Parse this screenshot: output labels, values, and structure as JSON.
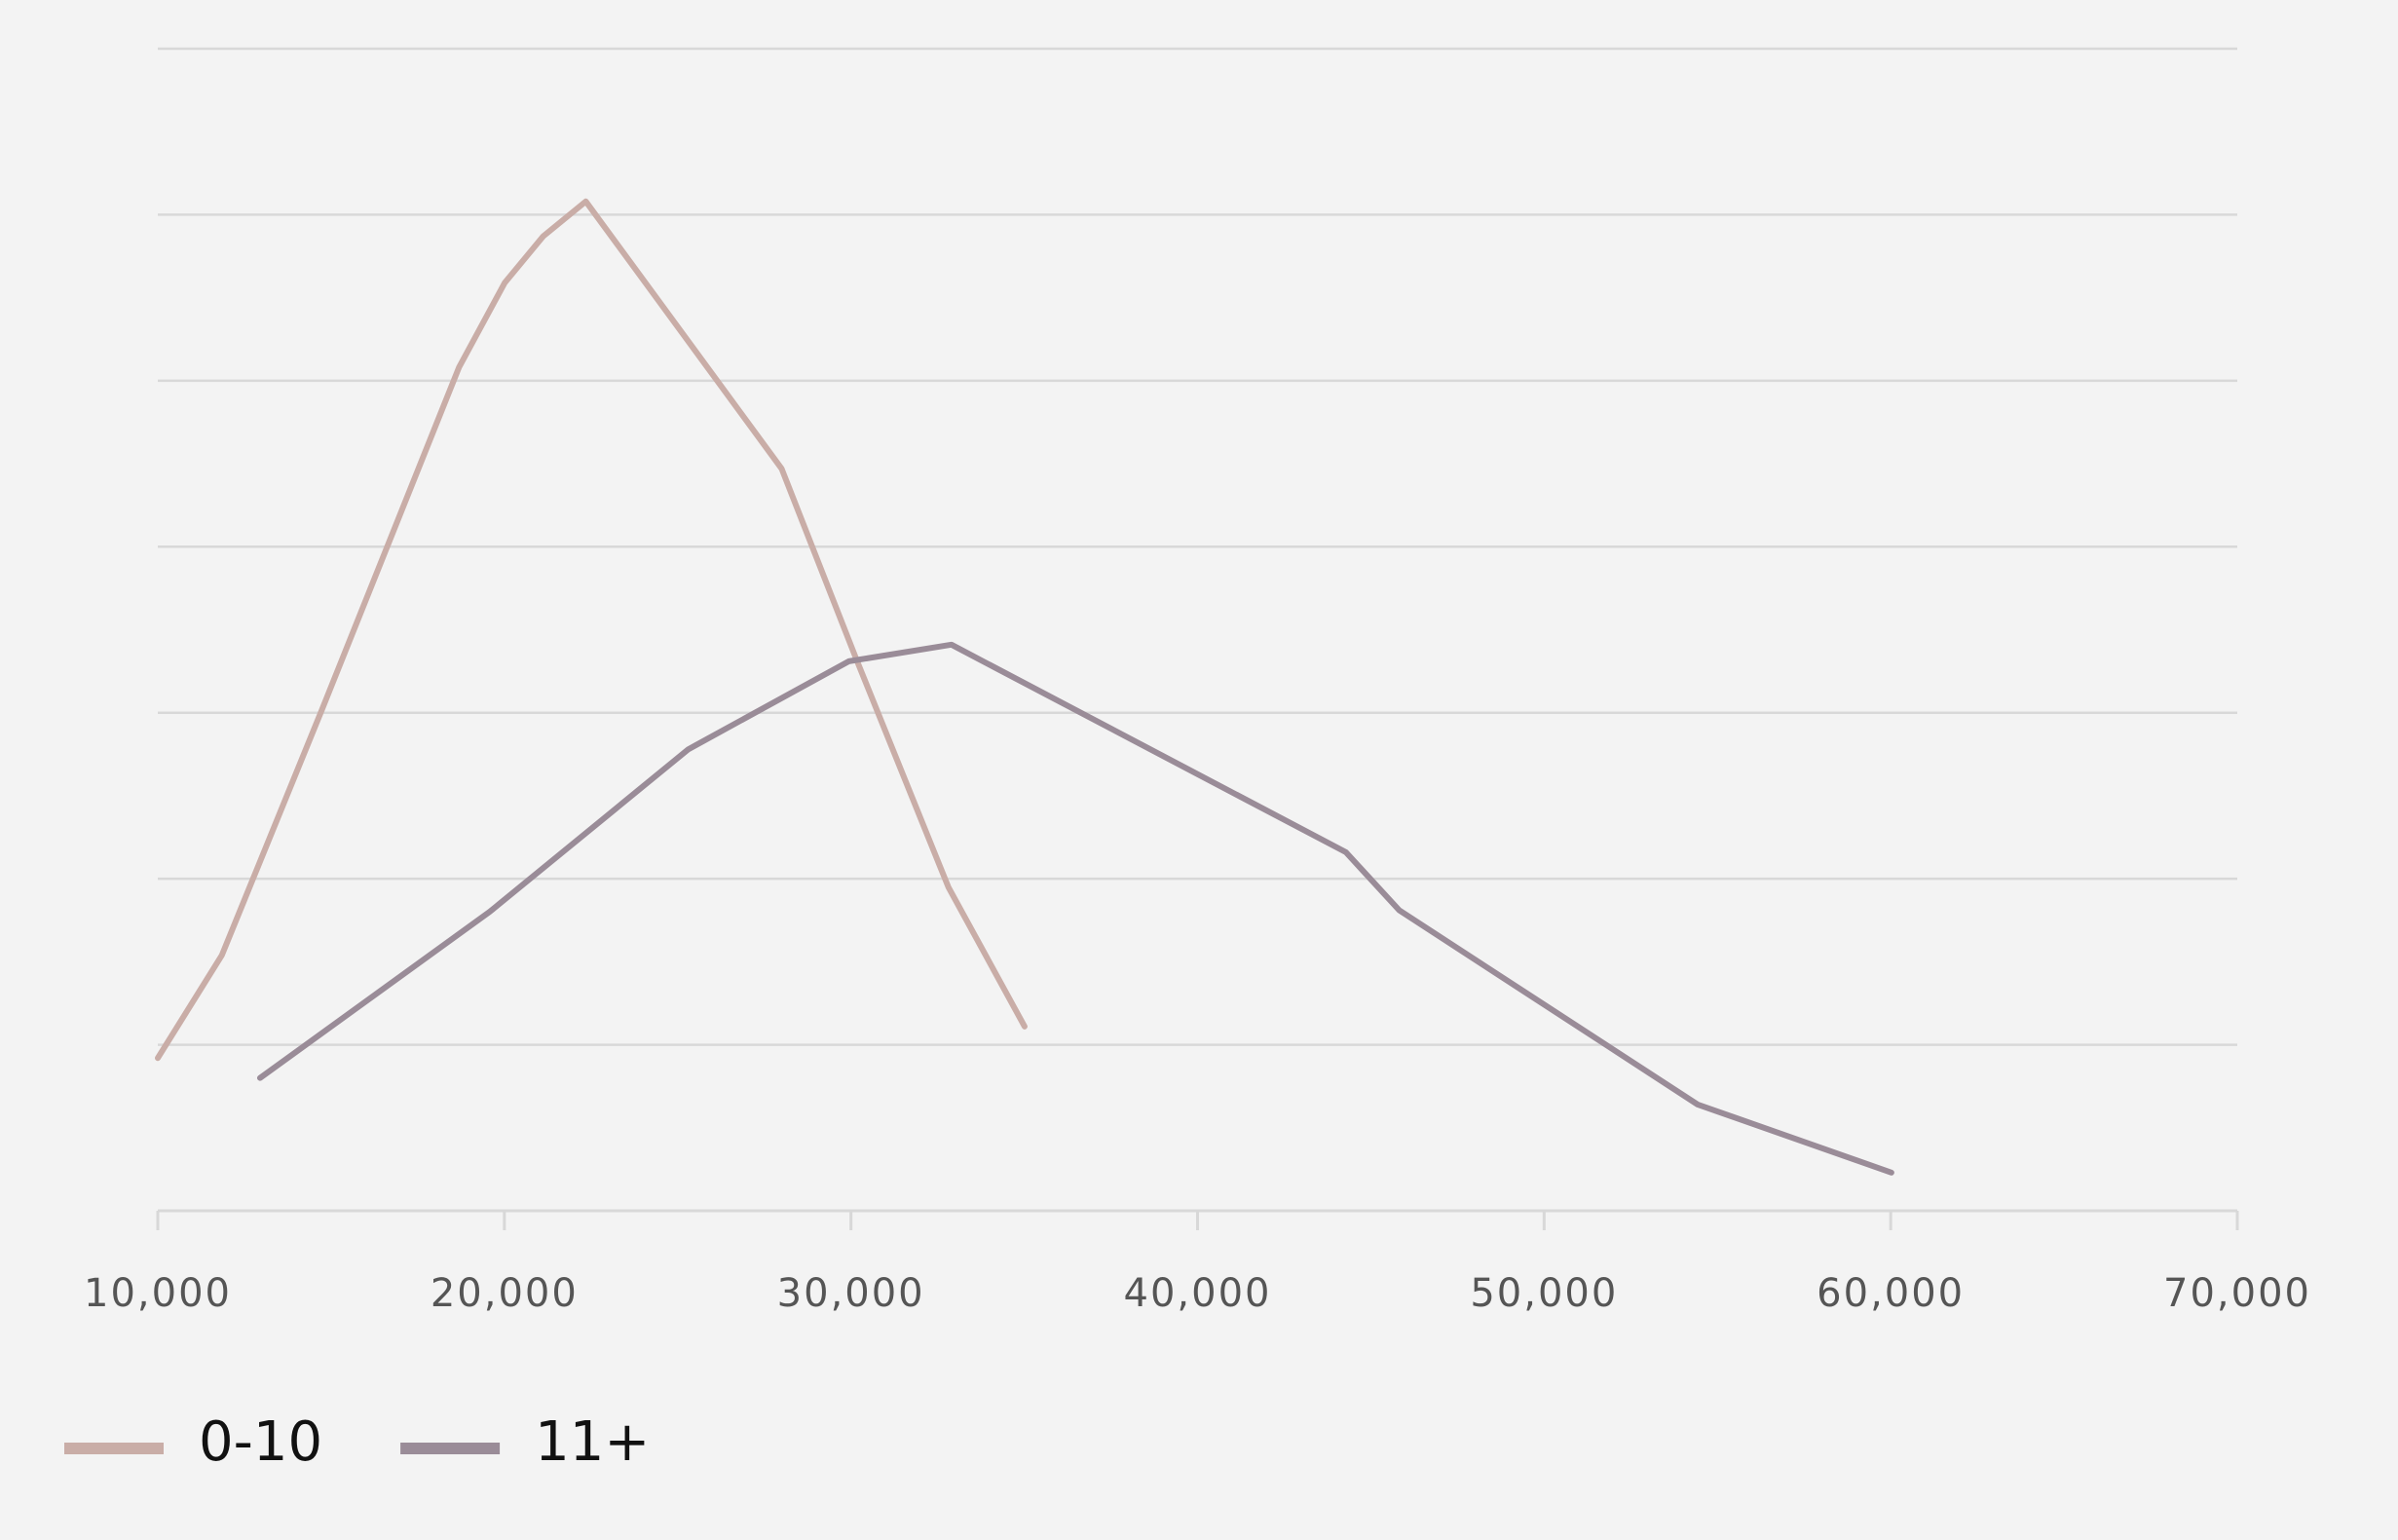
{
  "chart_data": {
    "type": "line",
    "xlim": [
      10000,
      70000
    ],
    "xticks": [
      {
        "value": 10000,
        "label": "10,000"
      },
      {
        "value": 20000,
        "label": "20,000"
      },
      {
        "value": 30000,
        "label": "30,000"
      },
      {
        "value": 40000,
        "label": "40,000"
      },
      {
        "value": 50000,
        "label": "50,000"
      },
      {
        "value": 60000,
        "label": "60,000"
      },
      {
        "value": 70000,
        "label": "70,000"
      }
    ],
    "ylim": [
      0,
      7
    ],
    "yticks": [
      1,
      2,
      3,
      4,
      5,
      6,
      7
    ],
    "ytick_labels": false,
    "grid": true,
    "legend": "bottom-left",
    "series": [
      {
        "name": "0-10",
        "color": "#c9ada7",
        "x": [
          10000,
          11850,
          14720,
          18690,
          20010,
          21120,
          22350,
          28000,
          30160,
          32810,
          35010
        ],
        "values": [
          0.92,
          1.54,
          3.01,
          5.08,
          5.59,
          5.87,
          6.08,
          4.47,
          3.32,
          1.95,
          1.11
        ]
      },
      {
        "name": "11+",
        "color": "#9a8c98",
        "x": [
          12950,
          19570,
          25310,
          29940,
          32900,
          44280,
          45820,
          54430,
          60020
        ],
        "values": [
          0.8,
          1.8,
          2.78,
          3.31,
          3.41,
          2.16,
          1.81,
          0.64,
          0.23
        ]
      }
    ]
  }
}
